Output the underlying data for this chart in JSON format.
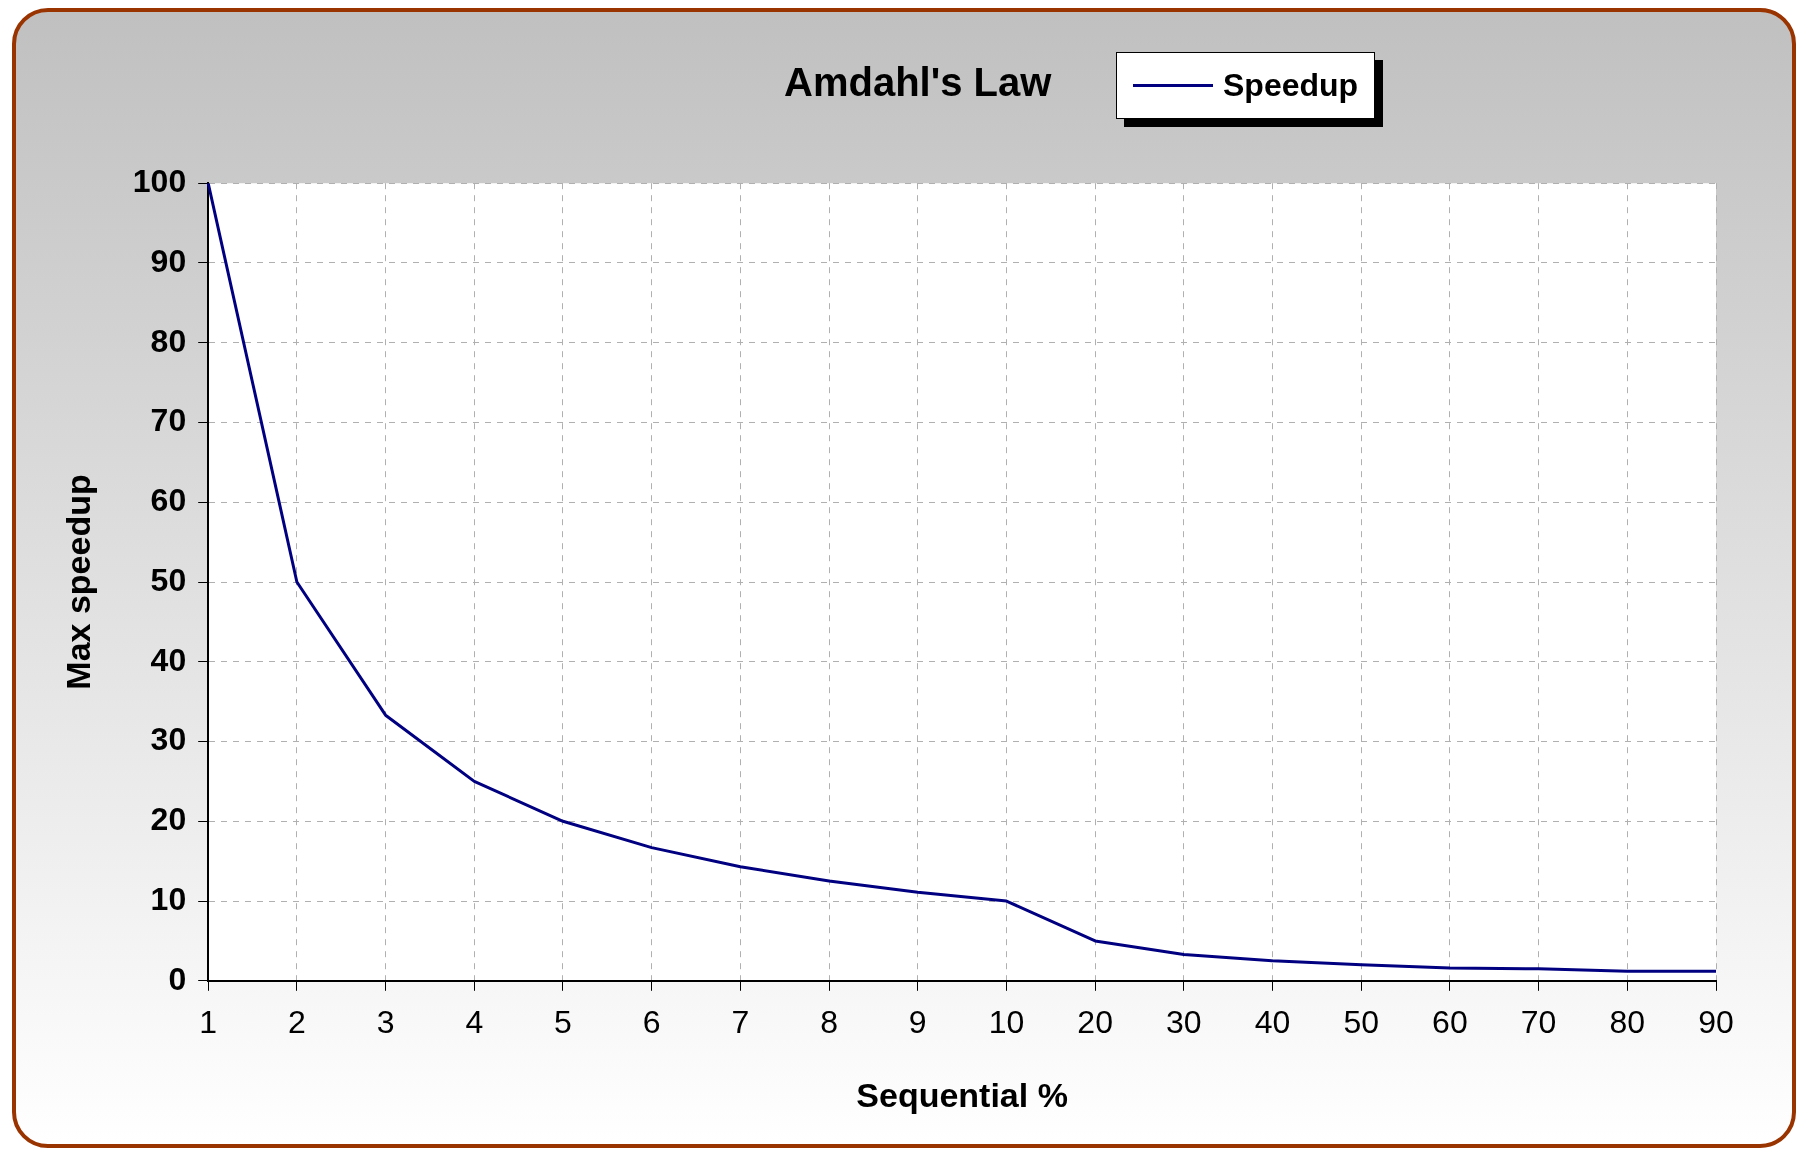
{
  "chart_data": {
    "type": "line",
    "title": "Amdahl's Law",
    "xlabel": "Sequential %",
    "ylabel": "Max speedup",
    "categories": [
      "1",
      "2",
      "3",
      "4",
      "5",
      "6",
      "7",
      "8",
      "9",
      "10",
      "20",
      "30",
      "40",
      "50",
      "60",
      "70",
      "80",
      "90"
    ],
    "series": [
      {
        "name": "Speedup",
        "color": "#000080",
        "values": [
          100,
          50,
          33.3,
          25,
          20,
          16.7,
          14.3,
          12.5,
          11.1,
          10,
          5,
          3.3,
          2.5,
          2,
          1.6,
          1.5,
          1.2,
          1.2
        ]
      }
    ],
    "ylim": [
      0,
      100
    ],
    "yticks": [
      0,
      10,
      20,
      30,
      40,
      50,
      60,
      70,
      80,
      90,
      100
    ],
    "grid": true,
    "legend": "top right",
    "marker": "none",
    "line_style": "solid"
  }
}
